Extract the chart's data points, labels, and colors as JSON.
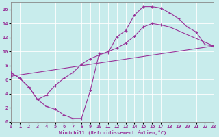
{
  "title": "",
  "xlabel": "Windchill (Refroidissement éolien,°C)",
  "ylabel": "",
  "bg_color": "#c8ecec",
  "line_color": "#993399",
  "grid_color": "#ffffff",
  "xlim": [
    0,
    23
  ],
  "ylim": [
    0,
    17
  ],
  "xticks": [
    0,
    1,
    2,
    3,
    4,
    5,
    6,
    7,
    8,
    9,
    10,
    11,
    12,
    13,
    14,
    15,
    16,
    17,
    18,
    19,
    20,
    21,
    22,
    23
  ],
  "yticks": [
    0,
    2,
    4,
    6,
    8,
    10,
    12,
    14,
    16
  ],
  "curve1_x": [
    0,
    1,
    2,
    3,
    4,
    5,
    6,
    7,
    8,
    9,
    10,
    11,
    12,
    13,
    14,
    15,
    16,
    17,
    18,
    19,
    20,
    21,
    22,
    23
  ],
  "curve1_y": [
    7.0,
    6.2,
    5.0,
    3.2,
    2.2,
    1.8,
    1.0,
    0.5,
    0.5,
    4.5,
    9.7,
    9.8,
    12.1,
    13.0,
    15.2,
    16.4,
    16.4,
    16.2,
    15.5,
    14.7,
    13.5,
    12.8,
    11.0,
    10.8
  ],
  "curve2_x": [
    0,
    1,
    2,
    3,
    4,
    5,
    6,
    7,
    8,
    9,
    10,
    11,
    12,
    13,
    14,
    15,
    16,
    17,
    18,
    23
  ],
  "curve2_y": [
    7.0,
    6.2,
    5.0,
    3.2,
    3.8,
    5.2,
    6.2,
    7.0,
    8.2,
    9.0,
    9.5,
    10.0,
    10.5,
    11.2,
    12.2,
    13.5,
    14.0,
    13.8,
    13.5,
    10.8
  ],
  "curve3_x": [
    0,
    23
  ],
  "curve3_y": [
    6.5,
    10.8
  ]
}
